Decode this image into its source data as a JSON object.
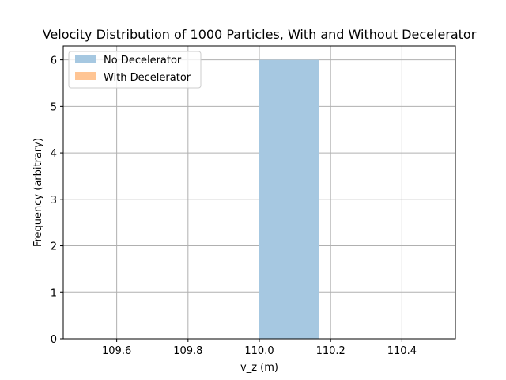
{
  "chart_data": {
    "type": "bar",
    "title": "Velocity Distribution of 1000 Particles, With and Without Decelerator",
    "xlabel": "v_z (m)",
    "ylabel": "Frequency (arbitrary)",
    "xlim": [
      109.45,
      110.55
    ],
    "ylim": [
      0,
      6.3
    ],
    "x_ticks": [
      109.6,
      109.8,
      110.0,
      110.2,
      110.4
    ],
    "y_ticks": [
      0,
      1,
      2,
      3,
      4,
      5,
      6
    ],
    "grid": true,
    "legend_position": "top-left",
    "series": [
      {
        "name": "No Decelerator",
        "color": "#a6c8e1",
        "bins": [
          {
            "x0": 110.0,
            "x1": 110.1667,
            "value": 6
          }
        ]
      },
      {
        "name": "With Decelerator",
        "color": "#ffc594",
        "bins": []
      }
    ]
  }
}
